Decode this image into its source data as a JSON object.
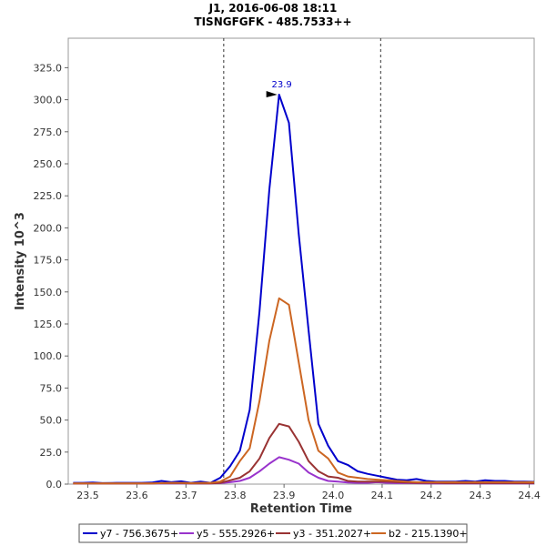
{
  "chart_data": {
    "type": "line",
    "title": "J1, 2016-06-08 18:11",
    "subtitle": "TISNGFGFK - 485.7533++",
    "xlabel": "Retention Time",
    "ylabel": "Intensity 10^3",
    "xlim": [
      23.46,
      24.41
    ],
    "ylim": [
      0,
      348
    ],
    "x_ticks": [
      23.5,
      23.6,
      23.7,
      23.8,
      23.9,
      24.0,
      24.1,
      24.2,
      24.3,
      24.4
    ],
    "x_tick_labels": [
      "23.5",
      "23.6",
      "23.7",
      "23.8",
      "23.9",
      "24.0",
      "24.1",
      "24.2",
      "24.3",
      "24.4"
    ],
    "y_ticks": [
      0,
      25,
      50,
      75,
      100,
      125,
      150,
      175,
      200,
      225,
      250,
      275,
      300,
      325
    ],
    "y_tick_labels": [
      "0.0",
      "25.0",
      "50.0",
      "75.0",
      "100.0",
      "125.0",
      "150.0",
      "175.0",
      "200.0",
      "225.0",
      "250.0",
      "275.0",
      "300.0",
      "325.0"
    ],
    "integration_bounds": [
      23.777,
      24.097
    ],
    "peak_annotation": {
      "x": 23.888,
      "y": 304,
      "label": "23.9",
      "color": "#0000cc"
    },
    "x": [
      23.47,
      23.49,
      23.51,
      23.53,
      23.55,
      23.57,
      23.59,
      23.61,
      23.63,
      23.65,
      23.67,
      23.69,
      23.71,
      23.73,
      23.75,
      23.77,
      23.79,
      23.81,
      23.83,
      23.85,
      23.87,
      23.89,
      23.91,
      23.93,
      23.95,
      23.97,
      23.99,
      24.01,
      24.03,
      24.05,
      24.07,
      24.09,
      24.11,
      24.13,
      24.15,
      24.17,
      24.19,
      24.21,
      24.23,
      24.25,
      24.27,
      24.29,
      24.31,
      24.33,
      24.35,
      24.37,
      24.39,
      24.41
    ],
    "series": [
      {
        "name": "y7 - 756.3675+",
        "color": "#0000cc",
        "values": [
          1.0,
          1.0,
          1.2,
          0.8,
          0.9,
          1.0,
          1.0,
          1.0,
          1.2,
          2.5,
          1.5,
          2.2,
          1.0,
          2.0,
          1.0,
          5.0,
          14.0,
          26.0,
          58.0,
          135.0,
          230.0,
          304.0,
          282.0,
          195.0,
          120.0,
          47.0,
          30.0,
          18.0,
          15.0,
          10.0,
          8.0,
          6.5,
          5.0,
          3.5,
          3.0,
          4.0,
          2.5,
          2.0,
          2.0,
          2.0,
          2.5,
          2.0,
          3.0,
          2.5,
          2.5,
          2.0,
          2.0,
          1.8
        ]
      },
      {
        "name": "y5 - 555.2926+",
        "color": "#9933cc",
        "values": [
          0.4,
          0.4,
          0.5,
          0.4,
          0.4,
          0.4,
          0.4,
          0.4,
          0.5,
          0.6,
          0.6,
          0.6,
          0.5,
          0.5,
          0.5,
          0.8,
          1.5,
          2.5,
          5.0,
          10.0,
          16.0,
          21.0,
          19.0,
          16.0,
          9.0,
          5.0,
          2.5,
          2.0,
          1.2,
          1.0,
          1.0,
          1.5,
          1.0,
          0.8,
          0.8,
          0.7,
          0.6,
          0.6,
          0.6,
          0.6,
          0.6,
          0.6,
          0.6,
          0.6,
          0.6,
          0.6,
          0.6,
          0.6
        ]
      },
      {
        "name": "y3 - 351.2027+",
        "color": "#993333",
        "values": [
          0.5,
          0.5,
          0.5,
          0.5,
          0.5,
          0.5,
          0.5,
          0.5,
          0.5,
          0.8,
          0.8,
          0.8,
          0.6,
          0.6,
          0.6,
          1.0,
          3.0,
          5.0,
          10.0,
          20.0,
          36.0,
          47.0,
          45.0,
          33.0,
          18.0,
          10.0,
          6.0,
          5.0,
          2.5,
          2.0,
          2.0,
          2.0,
          2.0,
          1.5,
          1.2,
          1.0,
          1.0,
          1.0,
          0.8,
          0.8,
          0.8,
          0.8,
          0.8,
          0.8,
          0.8,
          0.8,
          0.8,
          0.8
        ]
      },
      {
        "name": "b2 - 215.1390+",
        "color": "#cc6622",
        "values": [
          0.5,
          0.5,
          0.5,
          0.5,
          0.5,
          0.5,
          0.5,
          0.5,
          0.5,
          0.8,
          1.0,
          1.0,
          0.8,
          1.0,
          1.0,
          2.0,
          6.0,
          18.0,
          28.0,
          65.0,
          112.0,
          145.0,
          140.0,
          95.0,
          50.0,
          26.0,
          20.0,
          9.0,
          6.0,
          5.0,
          4.0,
          3.5,
          3.0,
          2.5,
          2.0,
          1.5,
          1.5,
          1.5,
          1.5,
          1.5,
          1.5,
          1.5,
          1.5,
          1.5,
          1.5,
          1.5,
          1.5,
          1.5
        ]
      }
    ]
  }
}
